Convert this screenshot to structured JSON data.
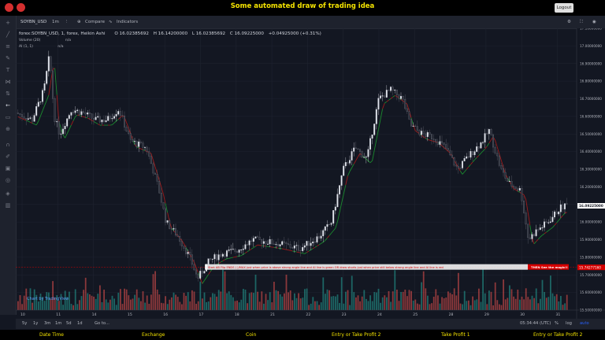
{
  "app": {
    "title": "Some automated draw of trading idea",
    "logout_label": "Logout"
  },
  "toolbar": {
    "symbol": "SOYBN_USD",
    "interval": "1m",
    "compare_label": "Compare",
    "indicators_label": "Indicators"
  },
  "legend": {
    "main": "forex:SOYBN_USD, 1, forex, Heikin Ashi",
    "open": "O 16.02385692",
    "high": "H 16.14200000",
    "low": "L 16.02385692",
    "close": "C 16.09225000",
    "change": "+0.04925000 (+0.31%)",
    "volume": "Volume (20)",
    "volume_val": "n/a",
    "ai": "AI (1, 1)",
    "ai_val": "n/a"
  },
  "price_axis": {
    "labels": [
      "17.10000000",
      "17.00000000",
      "16.90000000",
      "16.80000000",
      "16.70000000",
      "16.60000000",
      "16.50000000",
      "16.40000000",
      "16.30000000",
      "16.20000000",
      "16.10000000",
      "16.00000000",
      "15.90000000",
      "15.80000000",
      "15.70000000",
      "15.60000000",
      "15.50000000"
    ],
    "current": "16.09225000",
    "alert": "15.74277160"
  },
  "time_axis": {
    "labels": [
      "10",
      "11",
      "14",
      "15",
      "16",
      "17",
      "18",
      "21",
      "22",
      "23",
      "24",
      "25",
      "28",
      "29",
      "30",
      "31"
    ]
  },
  "annotation": {
    "bar_text": "Start AB Flip ENDS (  )/MAX just when  price is above strong angle line and AI line is green          OR          draw shorts just when price still below strong angle line and AI line is red",
    "magic_text": "THEN See the magic!!"
  },
  "watermark": "Chart by TradingView",
  "bottom": {
    "ranges": [
      "5y",
      "1y",
      "3m",
      "1m",
      "5d",
      "1d",
      "Go to..."
    ],
    "clock": "05:34:44 (UTC)",
    "pct": "%",
    "log": "log",
    "auto": "auto"
  },
  "footer": {
    "items": [
      "Date Time",
      "Exchange",
      "Coin",
      "Entry or Take Profit 2",
      "Take Profit 1",
      "Entry or Take Profit 2"
    ]
  },
  "colors": {
    "bg": "#131722",
    "up": "#26a69a",
    "down": "#ef5350",
    "candle_up": "#e0e3eb",
    "candle_down": "#787b86",
    "ai_green": "#1b8a2e",
    "ai_red": "#9e1b1b",
    "accent": "#f5e400",
    "alert": "#d50000"
  }
}
